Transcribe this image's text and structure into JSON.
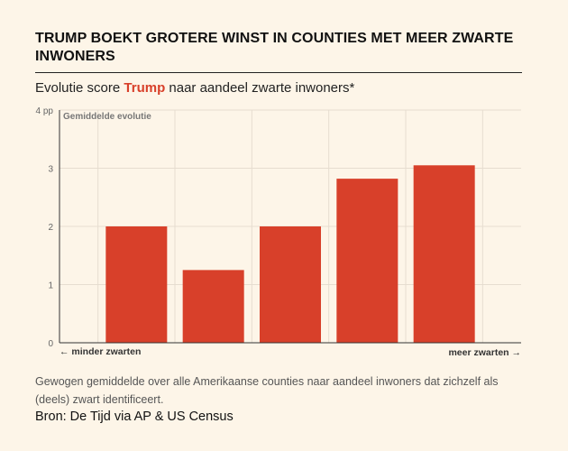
{
  "title": "TRUMP BOEKT GROTERE WINST IN COUNTIES MET MEER ZWARTE INWONERS",
  "subtitle": {
    "before": "Evolutie score ",
    "highlight": "Trump",
    "after": " naar aandeel zwarte inwoners*"
  },
  "footnote": "Gewogen gemiddelde over alle Amerikaanse counties naar aandeel inwoners dat zichzelf als (deels) zwart identificeert.",
  "source": "Bron: De Tijd via AP & US Census",
  "colors": {
    "bar": "#d8402a",
    "highlight": "#d8402a",
    "background": "#fdf5e8",
    "grid": "#e6ddd0"
  },
  "chart_data": {
    "type": "bar",
    "series_label": "Gemiddelde evolutie",
    "categories": [
      "",
      "",
      "",
      "",
      ""
    ],
    "values": [
      2.0,
      1.25,
      2.0,
      2.82,
      3.05
    ],
    "ylim": [
      0,
      4
    ],
    "yticks": [
      {
        "value": 0,
        "label": "0"
      },
      {
        "value": 1,
        "label": "1"
      },
      {
        "value": 2,
        "label": "2"
      },
      {
        "value": 3,
        "label": "3"
      },
      {
        "value": 4,
        "label": "4 pp"
      }
    ],
    "x_left_label": "← minder zwarten",
    "x_right_label": "meer zwarten →",
    "grid": true
  }
}
